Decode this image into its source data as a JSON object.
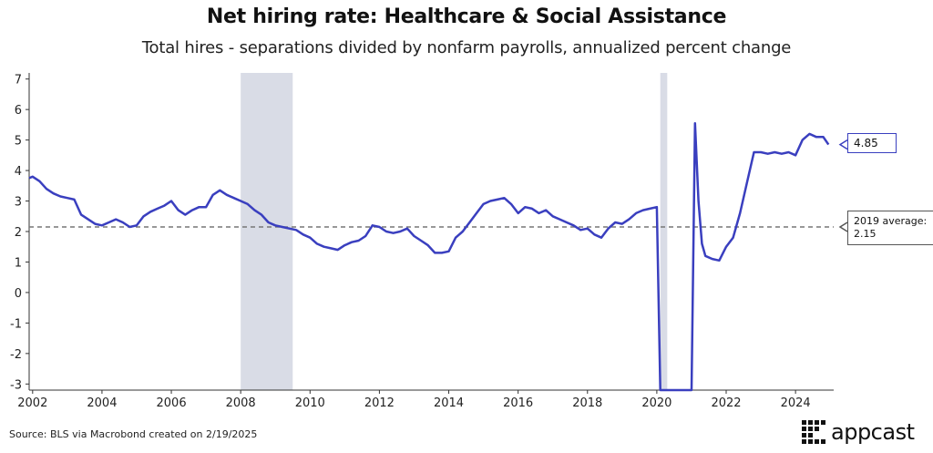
{
  "header": {
    "title": "Net hiring rate: Healthcare & Social Assistance",
    "subtitle": "Total hires - separations divided by nonfarm payrolls, annualized percent change"
  },
  "footer": {
    "source": "Source: BLS via Macrobond created on 2/19/2025",
    "logo_text": "appcast"
  },
  "annotations": {
    "last_value": "4.85",
    "avg_label": "2019 average:",
    "avg_value": "2.15"
  },
  "colors": {
    "series": "#3a3fbf",
    "recession": "#d9dce6",
    "average_line": "#777777"
  },
  "chart_data": {
    "type": "line",
    "title": "Net hiring rate: Healthcare & Social Assistance",
    "subtitle": "Total hires - separations divided by nonfarm payrolls, annualized percent change",
    "xlim": [
      2001.9,
      2025.1
    ],
    "ylim": [
      -3.2,
      7.2
    ],
    "x_ticks": [
      2002,
      2004,
      2006,
      2008,
      2010,
      2012,
      2014,
      2016,
      2018,
      2020,
      2022,
      2024
    ],
    "y_ticks": [
      -3,
      -2,
      -1,
      0,
      1,
      2,
      3,
      4,
      5,
      6,
      7
    ],
    "grid": false,
    "recession_bands": [
      [
        2008.0,
        2009.5
      ],
      [
        2020.1,
        2020.3
      ]
    ],
    "reference_line": {
      "value": 2.15,
      "label": "2019 average: 2.15",
      "style": "dashed"
    },
    "series": [
      {
        "x": [
          2001.9,
          2002.0,
          2002.2,
          2002.4,
          2002.6,
          2002.8,
          2003.0,
          2003.2,
          2003.4,
          2003.6,
          2003.8,
          2004.0,
          2004.2,
          2004.4,
          2004.6,
          2004.8,
          2005.0,
          2005.2,
          2005.4,
          2005.6,
          2005.8,
          2006.0,
          2006.2,
          2006.4,
          2006.6,
          2006.8,
          2007.0,
          2007.2,
          2007.4,
          2007.6,
          2007.8,
          2008.0,
          2008.2,
          2008.4,
          2008.6,
          2008.8,
          2009.0,
          2009.2,
          2009.4,
          2009.6,
          2009.8,
          2010.0,
          2010.2,
          2010.4,
          2010.6,
          2010.8,
          2011.0,
          2011.2,
          2011.4,
          2011.6,
          2011.8,
          2012.0,
          2012.2,
          2012.4,
          2012.6,
          2012.8,
          2013.0,
          2013.2,
          2013.4,
          2013.6,
          2013.8,
          2014.0,
          2014.2,
          2014.4,
          2014.6,
          2014.8,
          2015.0,
          2015.2,
          2015.4,
          2015.6,
          2015.8,
          2016.0,
          2016.2,
          2016.4,
          2016.6,
          2016.8,
          2017.0,
          2017.2,
          2017.4,
          2017.6,
          2017.8,
          2018.0,
          2018.2,
          2018.4,
          2018.6,
          2018.8,
          2019.0,
          2019.2,
          2019.4,
          2019.6,
          2019.8,
          2020.0,
          2020.1,
          2020.15,
          2020.2,
          2021.0,
          2021.1,
          2021.2,
          2021.3,
          2021.4,
          2021.6,
          2021.8,
          2022.0,
          2022.2,
          2022.4,
          2022.6,
          2022.8,
          2023.0,
          2023.2,
          2023.4,
          2023.6,
          2023.8,
          2024.0,
          2024.2,
          2024.4,
          2024.6,
          2024.8,
          2024.95
        ],
        "values": [
          3.75,
          3.8,
          3.65,
          3.4,
          3.25,
          3.15,
          3.1,
          3.05,
          2.55,
          2.4,
          2.25,
          2.2,
          2.3,
          2.4,
          2.3,
          2.15,
          2.2,
          2.5,
          2.65,
          2.75,
          2.85,
          3.0,
          2.7,
          2.55,
          2.7,
          2.8,
          2.8,
          3.2,
          3.35,
          3.2,
          3.1,
          3.0,
          2.9,
          2.7,
          2.55,
          2.3,
          2.2,
          2.15,
          2.1,
          2.05,
          1.9,
          1.8,
          1.6,
          1.5,
          1.45,
          1.4,
          1.55,
          1.65,
          1.7,
          1.85,
          2.2,
          2.15,
          2.0,
          1.95,
          2.0,
          2.1,
          1.85,
          1.7,
          1.55,
          1.3,
          1.3,
          1.35,
          1.8,
          2.0,
          2.3,
          2.6,
          2.9,
          3.0,
          3.05,
          3.1,
          2.9,
          2.6,
          2.8,
          2.75,
          2.6,
          2.7,
          2.5,
          2.4,
          2.3,
          2.2,
          2.05,
          2.1,
          1.9,
          1.8,
          2.1,
          2.3,
          2.25,
          2.4,
          2.6,
          2.7,
          2.75,
          2.8,
          -3.3,
          -3.3,
          -3.3,
          -3.3,
          5.55,
          3.0,
          1.6,
          1.2,
          1.1,
          1.05,
          1.5,
          1.8,
          2.6,
          3.6,
          4.6,
          4.6,
          4.55,
          4.6,
          4.55,
          4.6,
          4.5,
          5.0,
          5.2,
          5.1,
          5.1,
          4.85
        ]
      }
    ]
  }
}
